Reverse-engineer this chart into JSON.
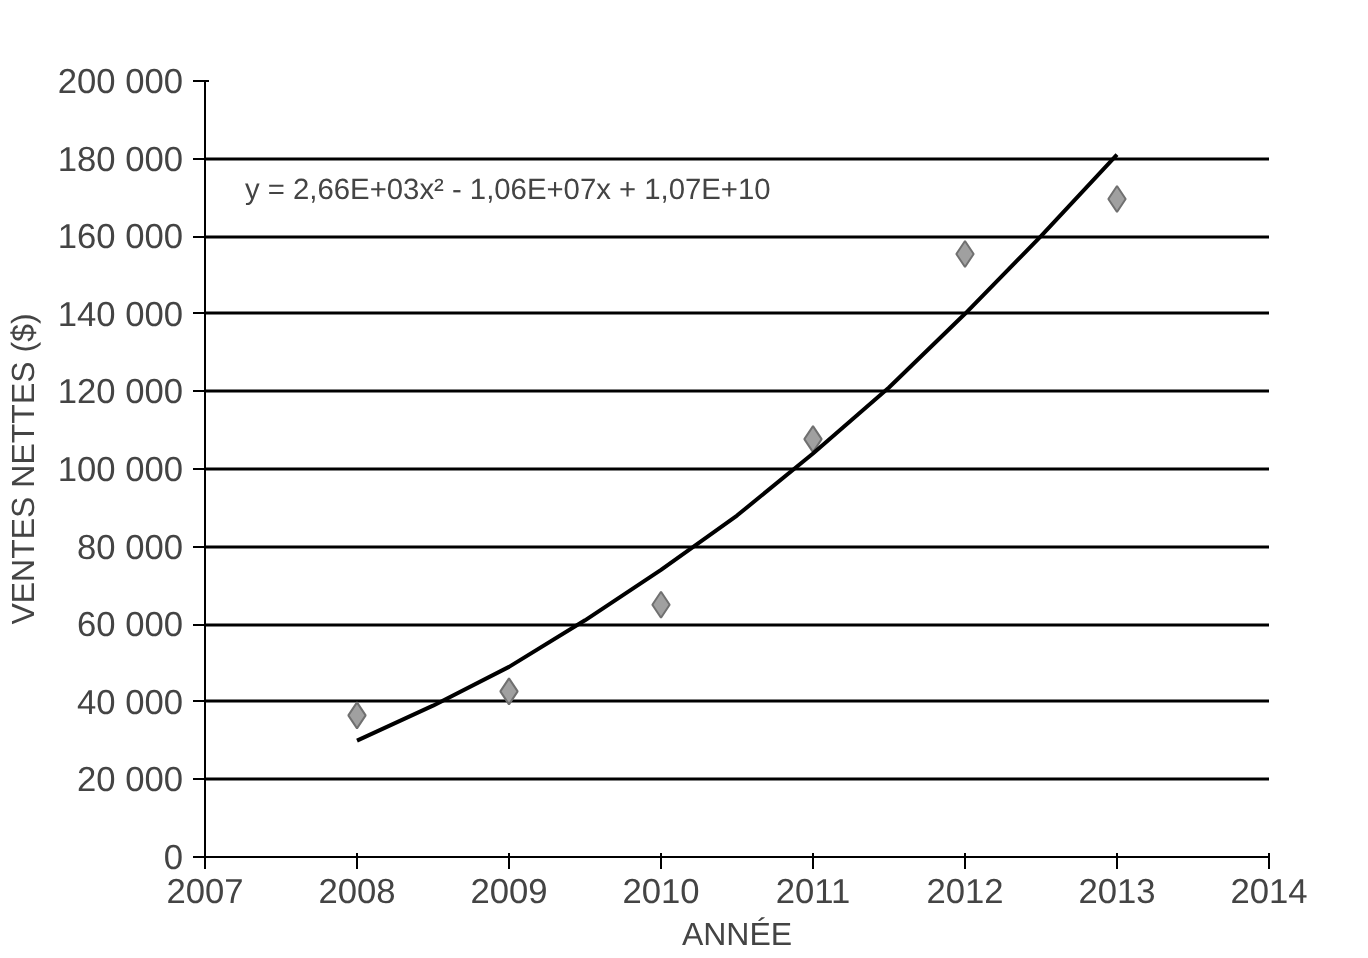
{
  "chart_data": {
    "type": "scatter",
    "xlabel": "ANNÉE",
    "ylabel": "VENTES NETTES ($)",
    "x": [
      2008,
      2009,
      2010,
      2011,
      2012,
      2013
    ],
    "series": [
      {
        "color": "#a0a0a0",
        "marker": "diamond",
        "values": [
          36500,
          42700,
          65000,
          107700,
          155400,
          169600
        ]
      },
      {
        "type": "line",
        "color": "#000000",
        "marker": "none",
        "line_style": "solid",
        "x": [
          2008,
          2008.5,
          2009,
          2009.5,
          2010,
          2010.5,
          2011,
          2011.5,
          2012,
          2012.5,
          2013
        ],
        "values": [
          30000,
          39000,
          49000,
          61000,
          74000,
          88000,
          104000,
          121000,
          140000,
          160000,
          181000
        ]
      }
    ],
    "annotations": [
      "y = 2,66E+03x² - 1,06E+07x + 1,07E+10"
    ],
    "xlim": [
      2007,
      2014
    ],
    "xticks": [
      2007,
      2008,
      2009,
      2010,
      2011,
      2012,
      2013,
      2014
    ],
    "ylim": [
      0,
      200000
    ],
    "yticks": [
      {
        "value": 0,
        "label": "0"
      },
      {
        "value": 20000,
        "label": "20 000"
      },
      {
        "value": 40000,
        "label": "40 000"
      },
      {
        "value": 60000,
        "label": "60 000"
      },
      {
        "value": 80000,
        "label": "80 000"
      },
      {
        "value": 100000,
        "label": "100 000"
      },
      {
        "value": 120000,
        "label": "120 000"
      },
      {
        "value": 140000,
        "label": "140 000"
      },
      {
        "value": 160000,
        "label": "160 000"
      },
      {
        "value": 180000,
        "label": "180 000"
      },
      {
        "value": 200000,
        "label": "200 000"
      }
    ],
    "grid": "y"
  }
}
